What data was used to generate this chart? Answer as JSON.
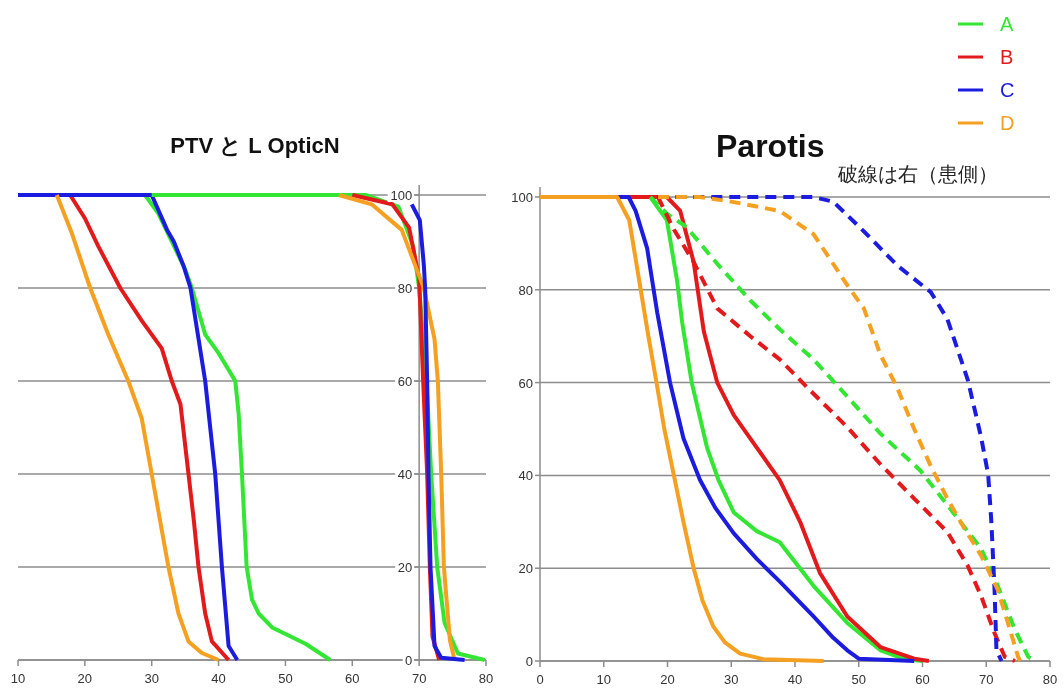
{
  "chart_data": [
    {
      "type": "line",
      "title": "PTV と L OpticN",
      "xlim": [
        10,
        80
      ],
      "xticks": [
        10,
        20,
        30,
        40,
        50,
        60,
        70,
        80
      ],
      "ylim": [
        0,
        100
      ],
      "yticks": [
        0,
        20,
        40,
        60,
        80,
        100
      ],
      "grid": "y",
      "line_style": "solid",
      "series": [
        {
          "color": "#33e633",
          "x": [
            29,
            31,
            33,
            35,
            36,
            38,
            40,
            42.5,
            43,
            43.5,
            44.2,
            45,
            46,
            48,
            53,
            56.7
          ],
          "values": [
            100,
            96,
            90,
            84,
            80,
            70,
            66,
            60,
            53,
            40,
            20,
            13,
            10,
            7,
            3.5,
            0
          ]
        },
        {
          "color": "#e31a1c",
          "x": [
            17.8,
            20,
            22,
            25.3,
            28.5,
            31.5,
            33,
            34.3,
            35.5,
            36.3,
            37,
            38,
            39,
            41.5
          ],
          "values": [
            100,
            95,
            89,
            80,
            73,
            67,
            60,
            55,
            40,
            30,
            20,
            10,
            4,
            0
          ]
        },
        {
          "color": "#1c1ce0",
          "x": [
            10,
            30,
            32.3,
            33.3,
            34.8,
            35.8,
            38,
            39.5,
            40.5,
            41.5,
            42.8
          ],
          "values": [
            100,
            100,
            92.5,
            90,
            84.6,
            80,
            60,
            40,
            20,
            3,
            0
          ]
        },
        {
          "color": "#f5a020",
          "x": [
            15.8,
            18,
            20.8,
            23.5,
            26.5,
            28.5,
            30,
            31.5,
            32.5,
            34,
            35.5,
            37.5,
            40
          ],
          "values": [
            100,
            92,
            80,
            70,
            60,
            52,
            40,
            28,
            20,
            10,
            4,
            1.5,
            0
          ]
        },
        {
          "color": "#33e633",
          "x": [
            30,
            62,
            66.9,
            69.1,
            70,
            71.1,
            71.8,
            72.7,
            73.8,
            75.8,
            79.8
          ],
          "values": [
            100,
            100,
            97.5,
            89,
            80,
            60,
            40,
            20,
            8,
            1.4,
            0
          ]
        },
        {
          "color": "#e31a1c",
          "x": [
            60,
            66,
            68.5,
            70,
            70.6,
            71.2,
            71.6,
            72,
            73
          ],
          "values": [
            100,
            98,
            93,
            82,
            60,
            40,
            20,
            5,
            0
          ]
        },
        {
          "color": "#f5a020",
          "x": [
            58,
            62.9,
            67.4,
            70.7,
            72.3,
            72.8,
            73.3,
            73.7,
            74.6,
            75.3
          ],
          "values": [
            100,
            98,
            92.5,
            80,
            69,
            60,
            40,
            20,
            4.3,
            0
          ]
        },
        {
          "color": "#1c1ce0",
          "x": [
            68.9,
            70.1,
            70.7,
            70.9,
            71.2,
            71.4,
            71.7,
            72.3,
            73.3,
            76.8
          ],
          "values": [
            98,
            94.6,
            85,
            80,
            60,
            40,
            20,
            3,
            0.5,
            0
          ]
        }
      ]
    },
    {
      "type": "line",
      "title": "Parotis",
      "subtitle": "破線は右（患側）",
      "xlim": [
        0,
        80
      ],
      "xticks": [
        0,
        10,
        20,
        30,
        40,
        50,
        60,
        70,
        80
      ],
      "ylim": [
        0,
        100
      ],
      "yticks": [
        0,
        20,
        40,
        60,
        80,
        100
      ],
      "grid": "y",
      "legend": "top right",
      "line_style": "solid",
      "series": [
        {
          "name": "A",
          "color": "#33e633",
          "x": [
            0,
            17.3,
            19.9,
            21.5,
            22.3,
            23.8,
            26.2,
            28,
            30.4,
            34,
            37.6,
            42.9,
            48.2,
            53.4,
            57,
            60
          ],
          "values": [
            100,
            100,
            95,
            82,
            73,
            60,
            46,
            39,
            32,
            28,
            25.6,
            16.2,
            8.2,
            2.3,
            0.5,
            0
          ]
        },
        {
          "name": "B",
          "color": "#e31a1c",
          "x": [
            0,
            19.9,
            22,
            24.1,
            25.7,
            27.8,
            30.4,
            34,
            37.6,
            40.8,
            43.9,
            48.2,
            53.4,
            58.7,
            61
          ],
          "values": [
            100,
            100,
            97,
            86,
            71,
            60,
            53,
            46,
            39,
            30,
            19,
            9.6,
            3,
            0.5,
            0
          ]
        },
        {
          "name": "C",
          "color": "#1c1ce0",
          "x": [
            0,
            13.9,
            15,
            16.8,
            18.4,
            20.4,
            22.5,
            25.1,
            27.5,
            30.4,
            34,
            37.7,
            42.9,
            46,
            48.2,
            50,
            58.7
          ],
          "values": [
            100,
            100,
            97,
            89,
            75,
            60,
            48,
            39,
            33,
            27.5,
            22,
            17,
            9.6,
            5,
            2.3,
            0.5,
            0
          ]
        },
        {
          "name": "D",
          "color": "#f5a020",
          "x": [
            0,
            12.1,
            14,
            15.8,
            17,
            18.4,
            19.5,
            21,
            22.5,
            24.1,
            25.5,
            27.2,
            29,
            31.4,
            35,
            44.5
          ],
          "values": [
            100,
            100,
            95,
            80,
            70,
            59,
            50,
            40,
            30,
            20,
            13,
            7.4,
            4,
            1.6,
            0.4,
            0
          ]
        },
        {
          "color": "#33e633",
          "line_style": "dashed",
          "x": [
            17.3,
            19.9,
            23,
            27.8,
            33,
            37.6,
            42.9,
            48.2,
            53.4,
            59.7,
            63.9,
            69.2,
            71.8,
            74.5,
            76.6,
            77.6
          ],
          "values": [
            100,
            96.4,
            93.5,
            85.6,
            77.7,
            71.5,
            65,
            57,
            49,
            41,
            33.6,
            24.2,
            16.2,
            6.7,
            0.9,
            0
          ]
        },
        {
          "color": "#e31a1c",
          "line_style": "dashed",
          "x": [
            18.5,
            21,
            24.1,
            27.8,
            33,
            37.6,
            42.9,
            48.2,
            53.4,
            58.7,
            63.9,
            67.1,
            69.2,
            71.3,
            72.9,
            74.5
          ],
          "values": [
            100,
            93,
            86,
            76,
            70,
            65,
            57.6,
            50.4,
            42.4,
            35,
            27.8,
            20.5,
            14,
            6,
            0.9,
            0
          ]
        },
        {
          "color": "#1c1ce0",
          "line_style": "dashed",
          "x": [
            18.4,
            42.9,
            46,
            50.8,
            56,
            61.3,
            63.9,
            67.1,
            69.2,
            70.3,
            70.8,
            71.3,
            71.6,
            72.4
          ],
          "values": [
            100,
            100,
            99,
            92.6,
            85.3,
            79.5,
            73.7,
            60.6,
            48.2,
            40.2,
            30,
            15.4,
            2.3,
            0
          ]
        },
        {
          "color": "#f5a020",
          "line_style": "dashed",
          "x": [
            18.5,
            25,
            30,
            37.6,
            42.9,
            48.2,
            50.8,
            53.4,
            56,
            58.7,
            61.3,
            63.9,
            66.6,
            69.2,
            71.8,
            73.4,
            75,
            75.3
          ],
          "values": [
            100,
            100,
            99,
            97,
            92,
            81,
            76,
            66,
            59,
            50,
            42,
            35,
            28.5,
            22.7,
            15.4,
            8.2,
            0.9,
            0
          ]
        }
      ]
    }
  ]
}
